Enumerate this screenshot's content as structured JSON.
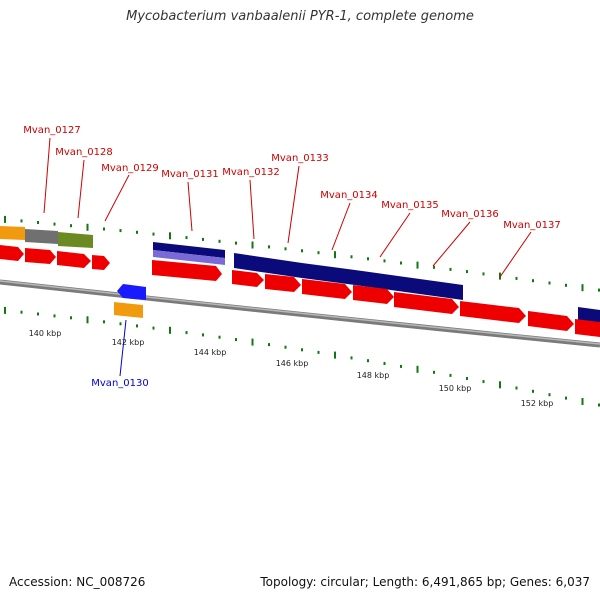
{
  "title": "Mycobacterium vanbaalenii PYR-1, complete genome",
  "accession": "Accession: NC_008726",
  "summary": "Topology: circular; Length: 6,491,865 bp; Genes: 6,037",
  "colors": {
    "forward_cds": "#ee0000",
    "forward_label": "#cc0000",
    "reverse_cds": "#1a1aff",
    "reverse_label": "#0000cc",
    "cog_navy": "#0a0a7a",
    "cog_orange": "#f29a0e",
    "cog_gray": "#707070",
    "cog_olive": "#6b8a22",
    "cog_lavender": "#7a6ad8",
    "backbone": "#7a7a7a",
    "tick": "#117711"
  },
  "gene_labels": [
    {
      "text": "Mvan_0127",
      "strand": "+"
    },
    {
      "text": "Mvan_0128",
      "strand": "+"
    },
    {
      "text": "Mvan_0129",
      "strand": "+"
    },
    {
      "text": "Mvan_0131",
      "strand": "+"
    },
    {
      "text": "Mvan_0132",
      "strand": "+"
    },
    {
      "text": "Mvan_0133",
      "strand": "+"
    },
    {
      "text": "Mvan_0134",
      "strand": "+"
    },
    {
      "text": "Mvan_0135",
      "strand": "+"
    },
    {
      "text": "Mvan_0136",
      "strand": "+"
    },
    {
      "text": "Mvan_0137",
      "strand": "+"
    },
    {
      "text": "Mvan_0130",
      "strand": "-"
    }
  ],
  "scale_labels": [
    "140 kbp",
    "142 kbp",
    "144 kbp",
    "146 kbp",
    "148 kbp",
    "150 kbp",
    "152 kbp"
  ]
}
